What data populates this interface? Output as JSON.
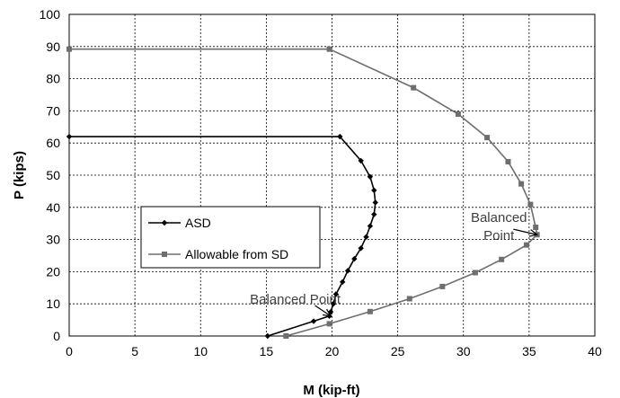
{
  "chart_data": {
    "type": "line",
    "xlabel": "M (kip-ft)",
    "ylabel": "P (kips)",
    "xlim": [
      0,
      40
    ],
    "ylim": [
      0,
      100
    ],
    "xticks": [
      "0",
      "5",
      "10",
      "15",
      "20",
      "25",
      "30",
      "35",
      "40"
    ],
    "yticks": [
      "0",
      "10",
      "20",
      "30",
      "40",
      "50",
      "60",
      "70",
      "80",
      "90",
      "100"
    ],
    "grid": true,
    "legend_position": "left-center",
    "series": [
      {
        "name": "ASD",
        "color": "#000000",
        "marker": "diamond",
        "points": [
          [
            0,
            62
          ],
          [
            20.6,
            62
          ],
          [
            22.2,
            54.5
          ],
          [
            22.9,
            49.5
          ],
          [
            23.2,
            45.3
          ],
          [
            23.3,
            41.5
          ],
          [
            23.2,
            37.8
          ],
          [
            22.9,
            34.2
          ],
          [
            22.6,
            30.8
          ],
          [
            22.2,
            27.3
          ],
          [
            21.7,
            24
          ],
          [
            21.2,
            20.3
          ],
          [
            20.8,
            16.8
          ],
          [
            20.3,
            13
          ],
          [
            20.1,
            10
          ],
          [
            19.9,
            7.5
          ],
          [
            19.8,
            6.2
          ],
          [
            18.6,
            4.6
          ],
          [
            15.1,
            0
          ]
        ]
      },
      {
        "name": "Allowable from SD",
        "color": "#6e6e6e",
        "marker": "square",
        "points": [
          [
            0,
            89.2
          ],
          [
            19.8,
            89.2
          ],
          [
            26.2,
            77.2
          ],
          [
            29.6,
            69
          ],
          [
            31.8,
            61.7
          ],
          [
            33.4,
            54.2
          ],
          [
            34.4,
            47.3
          ],
          [
            35.1,
            40.9
          ],
          [
            35.5,
            33.8
          ],
          [
            35.6,
            31.5
          ],
          [
            34.8,
            28.3
          ],
          [
            32.9,
            23.8
          ],
          [
            30.9,
            19.7
          ],
          [
            28.4,
            15.4
          ],
          [
            25.9,
            11.6
          ],
          [
            22.9,
            7.6
          ],
          [
            19.8,
            3.8
          ],
          [
            16.5,
            0
          ]
        ]
      }
    ],
    "annotations": [
      {
        "lines": [
          "Balanced Point"
        ],
        "target": [
          19.9,
          6.2
        ],
        "anchor": [
          17.2,
          10.1
        ],
        "arrow_from": [
          18.7,
          9.5
        ]
      },
      {
        "lines": [
          "Balanced",
          "Point"
        ],
        "target": [
          35.6,
          31.5
        ],
        "anchor": [
          32.7,
          35.5
        ],
        "arrow_from": [
          33.8,
          33.2
        ]
      }
    ]
  }
}
